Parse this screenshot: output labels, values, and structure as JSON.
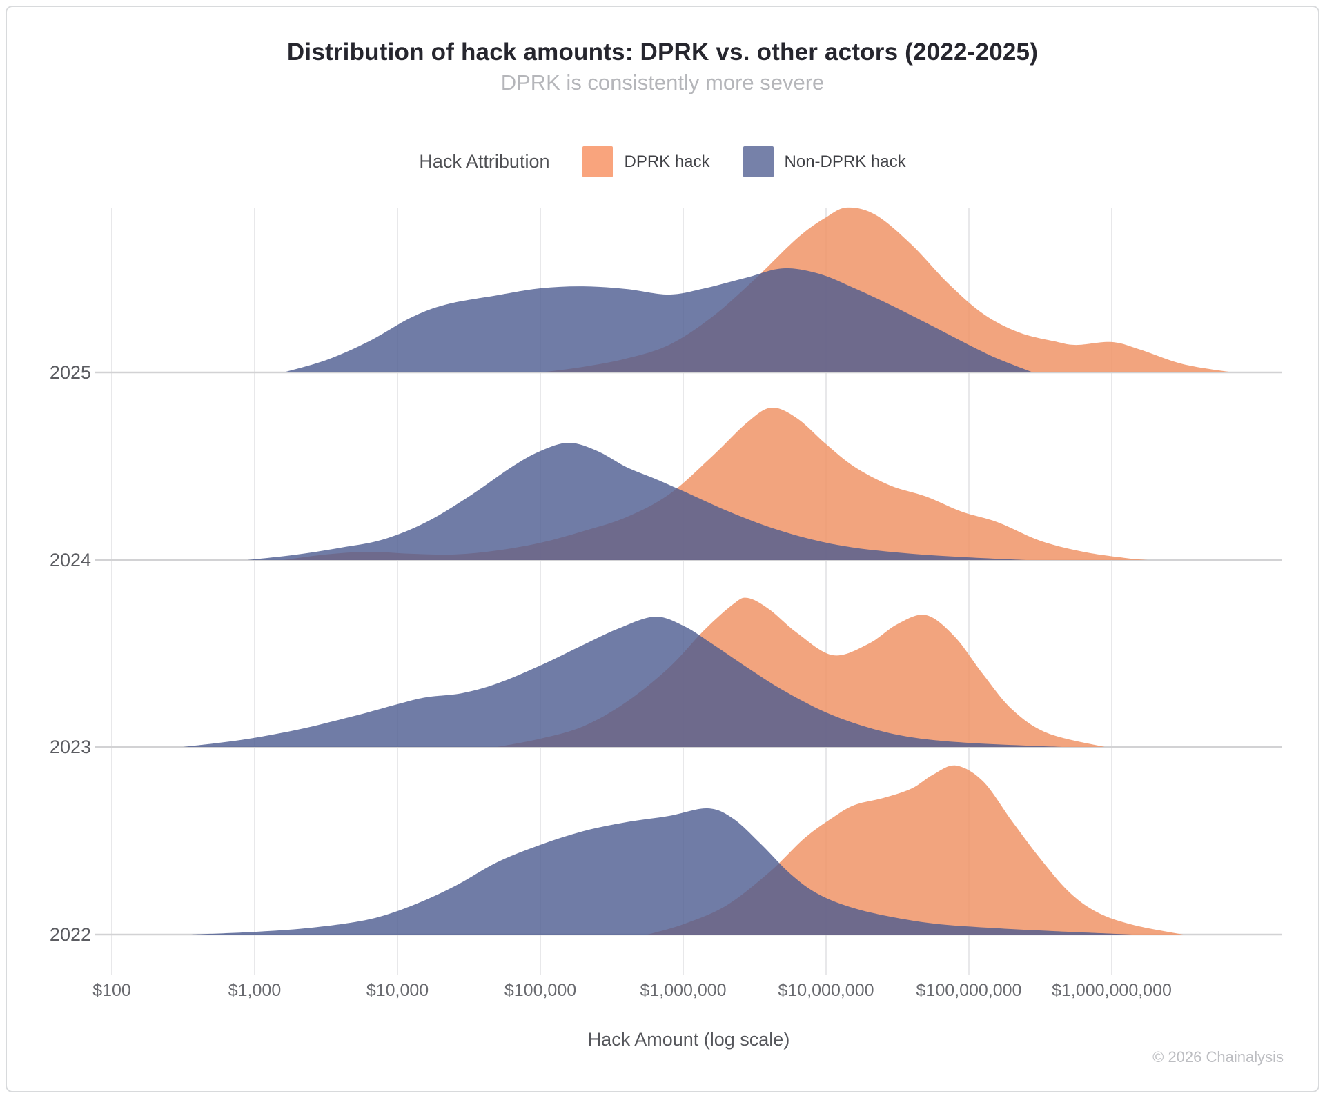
{
  "header": {
    "title": "Distribution of hack amounts: DPRK vs. other actors (2022-2025)",
    "subtitle": "DPRK is consistently more severe"
  },
  "legend": {
    "title": "Hack Attribution",
    "items": [
      {
        "label": "DPRK hack",
        "color": "#F9A47D"
      },
      {
        "label": "Non-DPRK hack",
        "color": "#7681A9"
      }
    ]
  },
  "footer": {
    "copyright": "© 2026 Chainalysis"
  },
  "chart_data": {
    "type": "area",
    "subtype": "ridgeline-density",
    "title": "Distribution of hack amounts: DPRK vs. other actors (2022-2025)",
    "subtitle": "DPRK is consistently more severe",
    "xlabel": "Hack Amount (log scale)",
    "ylabel": "",
    "x_scale": "log10-dollars",
    "x_range_log10": [
      1.85,
      10.1
    ],
    "grid": "vertical-only",
    "legend_position": "top-center",
    "years": [
      "2025",
      "2024",
      "2023",
      "2022"
    ],
    "x_ticks": [
      {
        "value": 100,
        "label": "$100"
      },
      {
        "value": 1000,
        "label": "$1,000"
      },
      {
        "value": 10000,
        "label": "$10,000"
      },
      {
        "value": 100000,
        "label": "$100,000"
      },
      {
        "value": 1000000,
        "label": "$1,000,000"
      },
      {
        "value": 10000000,
        "label": "$10,000,000"
      },
      {
        "value": 100000000,
        "label": "$100,000,000"
      },
      {
        "value": 1000000000,
        "label": "$1,000,000,000"
      }
    ],
    "colors": {
      "dprk": "#F9A47D",
      "non_dprk": "#7681A9",
      "dprk_fill": "rgba(240,148,103,0.85)",
      "non_dprk_fill": "rgba(76,91,144,0.80)",
      "gridline": "#E3E3E5",
      "baseline": "#D2D2D4"
    },
    "density_note": "points are [log10(hack amount USD), density normalized to tallest peak = 2022 DPRK]",
    "series": [
      {
        "year": "2025",
        "attribution": "DPRK",
        "points": [
          [
            5.0,
            0
          ],
          [
            5.3,
            0.033
          ],
          [
            5.6,
            0.082
          ],
          [
            5.9,
            0.163
          ],
          [
            6.2,
            0.327
          ],
          [
            6.5,
            0.551
          ],
          [
            6.8,
            0.796
          ],
          [
            7.0,
            0.918
          ],
          [
            7.15,
            0.976
          ],
          [
            7.35,
            0.931
          ],
          [
            7.6,
            0.755
          ],
          [
            7.85,
            0.531
          ],
          [
            8.1,
            0.347
          ],
          [
            8.35,
            0.237
          ],
          [
            8.6,
            0.184
          ],
          [
            8.75,
            0.163
          ],
          [
            9.0,
            0.18
          ],
          [
            9.2,
            0.135
          ],
          [
            9.5,
            0.049
          ],
          [
            9.85,
            0
          ]
        ]
      },
      {
        "year": "2025",
        "attribution": "Non-DPRK",
        "points": [
          [
            3.2,
            0
          ],
          [
            3.5,
            0.073
          ],
          [
            3.8,
            0.184
          ],
          [
            4.1,
            0.327
          ],
          [
            4.35,
            0.404
          ],
          [
            4.7,
            0.457
          ],
          [
            5.0,
            0.498
          ],
          [
            5.3,
            0.51
          ],
          [
            5.6,
            0.494
          ],
          [
            5.9,
            0.461
          ],
          [
            6.15,
            0.498
          ],
          [
            6.45,
            0.563
          ],
          [
            6.7,
            0.616
          ],
          [
            6.95,
            0.584
          ],
          [
            7.2,
            0.498
          ],
          [
            7.45,
            0.4
          ],
          [
            7.7,
            0.294
          ],
          [
            8.0,
            0.163
          ],
          [
            8.2,
            0.082
          ],
          [
            8.45,
            0
          ]
        ]
      },
      {
        "year": "2024",
        "attribution": "DPRK",
        "points": [
          [
            3.2,
            0
          ],
          [
            3.5,
            0.033
          ],
          [
            3.8,
            0.049
          ],
          [
            4.1,
            0.037
          ],
          [
            4.4,
            0.033
          ],
          [
            4.7,
            0.057
          ],
          [
            5.0,
            0.102
          ],
          [
            5.3,
            0.171
          ],
          [
            5.6,
            0.253
          ],
          [
            5.9,
            0.388
          ],
          [
            6.2,
            0.612
          ],
          [
            6.45,
            0.816
          ],
          [
            6.62,
            0.902
          ],
          [
            6.8,
            0.837
          ],
          [
            7.0,
            0.686
          ],
          [
            7.2,
            0.551
          ],
          [
            7.45,
            0.441
          ],
          [
            7.7,
            0.376
          ],
          [
            7.95,
            0.286
          ],
          [
            8.2,
            0.224
          ],
          [
            8.5,
            0.114
          ],
          [
            8.8,
            0.049
          ],
          [
            9.1,
            0.012
          ],
          [
            9.25,
            0
          ]
        ]
      },
      {
        "year": "2024",
        "attribution": "Non-DPRK",
        "points": [
          [
            2.95,
            0
          ],
          [
            3.3,
            0.033
          ],
          [
            3.6,
            0.073
          ],
          [
            3.9,
            0.122
          ],
          [
            4.2,
            0.224
          ],
          [
            4.5,
            0.376
          ],
          [
            4.8,
            0.551
          ],
          [
            5.0,
            0.645
          ],
          [
            5.2,
            0.694
          ],
          [
            5.4,
            0.645
          ],
          [
            5.6,
            0.551
          ],
          [
            5.8,
            0.482
          ],
          [
            6.0,
            0.408
          ],
          [
            6.3,
            0.294
          ],
          [
            6.6,
            0.196
          ],
          [
            6.9,
            0.122
          ],
          [
            7.2,
            0.073
          ],
          [
            7.6,
            0.037
          ],
          [
            8.0,
            0.016
          ],
          [
            8.4,
            0
          ]
        ]
      },
      {
        "year": "2023",
        "attribution": "DPRK",
        "points": [
          [
            4.7,
            0
          ],
          [
            5.0,
            0.049
          ],
          [
            5.3,
            0.122
          ],
          [
            5.6,
            0.265
          ],
          [
            5.9,
            0.469
          ],
          [
            6.15,
            0.694
          ],
          [
            6.35,
            0.845
          ],
          [
            6.45,
            0.882
          ],
          [
            6.6,
            0.816
          ],
          [
            6.8,
            0.673
          ],
          [
            7.05,
            0.543
          ],
          [
            7.3,
            0.612
          ],
          [
            7.5,
            0.727
          ],
          [
            7.7,
            0.78
          ],
          [
            7.9,
            0.653
          ],
          [
            8.1,
            0.429
          ],
          [
            8.3,
            0.224
          ],
          [
            8.55,
            0.082
          ],
          [
            8.95,
            0
          ]
        ]
      },
      {
        "year": "2023",
        "attribution": "Non-DPRK",
        "points": [
          [
            2.5,
            0
          ],
          [
            2.9,
            0.041
          ],
          [
            3.3,
            0.102
          ],
          [
            3.7,
            0.184
          ],
          [
            4.0,
            0.253
          ],
          [
            4.2,
            0.294
          ],
          [
            4.45,
            0.318
          ],
          [
            4.7,
            0.376
          ],
          [
            5.0,
            0.482
          ],
          [
            5.3,
            0.604
          ],
          [
            5.55,
            0.702
          ],
          [
            5.8,
            0.771
          ],
          [
            6.0,
            0.718
          ],
          [
            6.2,
            0.612
          ],
          [
            6.45,
            0.469
          ],
          [
            6.7,
            0.335
          ],
          [
            7.0,
            0.204
          ],
          [
            7.3,
            0.114
          ],
          [
            7.6,
            0.057
          ],
          [
            8.0,
            0.024
          ],
          [
            8.65,
            0
          ]
        ]
      },
      {
        "year": "2022",
        "attribution": "DPRK",
        "points": [
          [
            5.75,
            0
          ],
          [
            6.0,
            0.061
          ],
          [
            6.3,
            0.171
          ],
          [
            6.6,
            0.367
          ],
          [
            6.85,
            0.571
          ],
          [
            7.05,
            0.694
          ],
          [
            7.2,
            0.767
          ],
          [
            7.4,
            0.808
          ],
          [
            7.6,
            0.865
          ],
          [
            7.75,
            0.947
          ],
          [
            7.91,
            1.0
          ],
          [
            8.1,
            0.906
          ],
          [
            8.3,
            0.673
          ],
          [
            8.5,
            0.449
          ],
          [
            8.7,
            0.253
          ],
          [
            8.9,
            0.131
          ],
          [
            9.15,
            0.057
          ],
          [
            9.5,
            0
          ]
        ]
      },
      {
        "year": "2022",
        "attribution": "Non-DPRK",
        "points": [
          [
            2.55,
            0
          ],
          [
            3.0,
            0.016
          ],
          [
            3.4,
            0.041
          ],
          [
            3.8,
            0.09
          ],
          [
            4.1,
            0.171
          ],
          [
            4.4,
            0.286
          ],
          [
            4.7,
            0.429
          ],
          [
            5.0,
            0.531
          ],
          [
            5.3,
            0.612
          ],
          [
            5.6,
            0.665
          ],
          [
            5.9,
            0.702
          ],
          [
            6.17,
            0.747
          ],
          [
            6.35,
            0.686
          ],
          [
            6.55,
            0.531
          ],
          [
            6.75,
            0.359
          ],
          [
            6.95,
            0.237
          ],
          [
            7.2,
            0.155
          ],
          [
            7.5,
            0.098
          ],
          [
            7.8,
            0.061
          ],
          [
            8.2,
            0.037
          ],
          [
            8.6,
            0.02
          ],
          [
            9.15,
            0
          ]
        ]
      }
    ]
  }
}
